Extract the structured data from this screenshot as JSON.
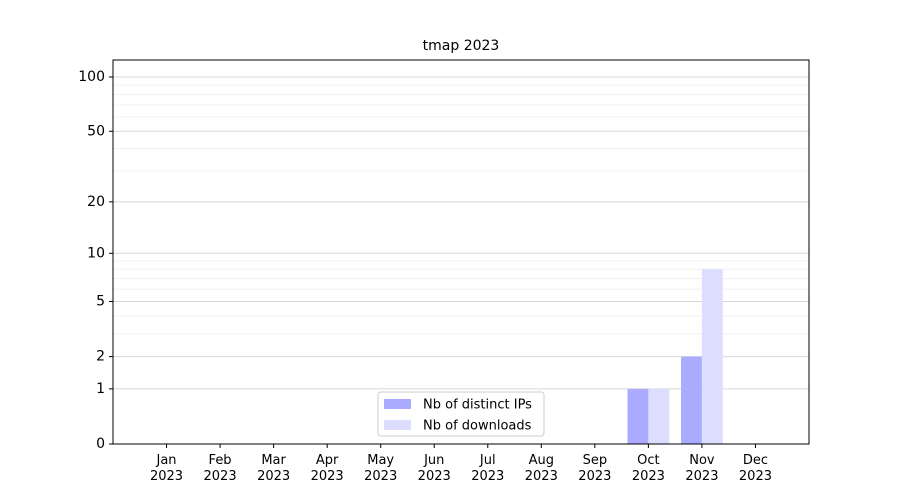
{
  "chart_data": {
    "type": "bar",
    "title": "tmap 2023",
    "categories": [
      "Jan\n2023",
      "Feb\n2023",
      "Mar\n2023",
      "Apr\n2023",
      "May\n2023",
      "Jun\n2023",
      "Jul\n2023",
      "Aug\n2023",
      "Sep\n2023",
      "Oct\n2023",
      "Nov\n2023",
      "Dec\n2023"
    ],
    "series": [
      {
        "name": "Nb of distinct IPs",
        "color": "#aaaaff",
        "values": [
          0,
          0,
          0,
          0,
          0,
          0,
          0,
          0,
          0,
          1,
          2,
          0
        ]
      },
      {
        "name": "Nb of downloads",
        "color": "#ddddff",
        "values": [
          0,
          0,
          0,
          0,
          0,
          0,
          0,
          0,
          0,
          1,
          8,
          0
        ]
      }
    ],
    "yscale": "log1p",
    "ylim": [
      0,
      124
    ],
    "yticks": [
      0,
      1,
      2,
      5,
      10,
      20,
      50,
      100
    ],
    "minor_yticks": [
      3,
      4,
      6,
      7,
      8,
      9,
      30,
      40,
      60,
      70,
      80,
      90
    ],
    "grid": true,
    "legend": "lower center"
  }
}
